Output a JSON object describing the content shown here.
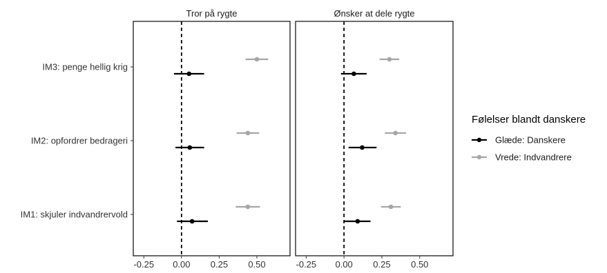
{
  "chart_data": {
    "type": "scatter",
    "subtype": "dot-whisker",
    "facets": [
      "Tror på rygte",
      "Ønsker at dele rygte"
    ],
    "categories": [
      "IM3: penge hellig krig",
      "IM2: opfordrer bedrageri",
      "IM1: skjuler indvandrervold"
    ],
    "xlim": [
      -0.32,
      0.72
    ],
    "xticks": [
      -0.25,
      0.0,
      0.25,
      0.5
    ],
    "xtick_labels": [
      "-0.25",
      "0.00",
      "0.25",
      "0.50"
    ],
    "reference_line": 0,
    "legend_title": "Følelser blandt danskere",
    "legend_position": "right",
    "series": [
      {
        "name": "Glæde: Danskere",
        "color": "#000000",
        "data": {
          "Tror på rygte": [
            {
              "category": "IM3: penge hellig krig",
              "estimate": 0.05,
              "low": -0.05,
              "high": 0.15
            },
            {
              "category": "IM2: opfordrer bedrageri",
              "estimate": 0.055,
              "low": -0.04,
              "high": 0.15
            },
            {
              "category": "IM1: skjuler indvandrervold",
              "estimate": 0.07,
              "low": -0.03,
              "high": 0.175
            }
          ],
          "Ønsker at dele rygte": [
            {
              "category": "IM3: penge hellig krig",
              "estimate": 0.065,
              "low": -0.02,
              "high": 0.15
            },
            {
              "category": "IM2: opfordrer bedrageri",
              "estimate": 0.12,
              "low": 0.03,
              "high": 0.215
            },
            {
              "category": "IM1: skjuler indvandrervold",
              "estimate": 0.09,
              "low": 0.0,
              "high": 0.175
            }
          ]
        }
      },
      {
        "name": "Vrede: Indvandrere",
        "color": "#a6a6a6",
        "data": {
          "Tror på rygte": [
            {
              "category": "IM3: penge hellig krig",
              "estimate": 0.5,
              "low": 0.425,
              "high": 0.575
            },
            {
              "category": "IM2: opfordrer bedrageri",
              "estimate": 0.44,
              "low": 0.365,
              "high": 0.515
            },
            {
              "category": "IM1: skjuler indvandrervold",
              "estimate": 0.44,
              "low": 0.36,
              "high": 0.52
            }
          ],
          "Ønsker at dele rygte": [
            {
              "category": "IM3: penge hellig krig",
              "estimate": 0.3,
              "low": 0.235,
              "high": 0.365
            },
            {
              "category": "IM2: opfordrer bedrageri",
              "estimate": 0.34,
              "low": 0.27,
              "high": 0.41
            },
            {
              "category": "IM1: skjuler indvandrervold",
              "estimate": 0.31,
              "low": 0.245,
              "high": 0.375
            }
          ]
        }
      }
    ]
  }
}
